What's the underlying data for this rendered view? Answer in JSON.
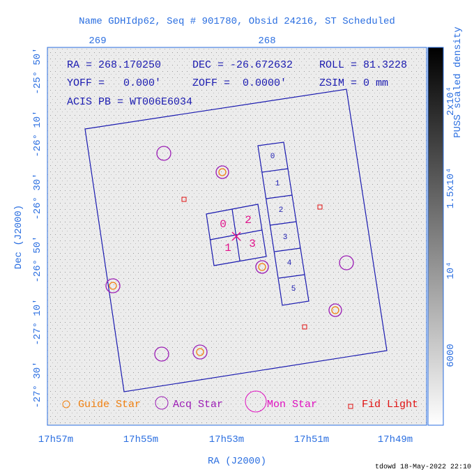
{
  "title": "Name GDHIdp62, Seq # 901780, Obsid 24216, ST Scheduled",
  "top_axis": {
    "ticks": [
      "269",
      "268"
    ]
  },
  "left_axis": {
    "label": "Dec (J2000)",
    "ticks": [
      "-25° 50'",
      "-26° 10'",
      "-26° 30'",
      "-26° 50'",
      "-27° 10'",
      "-27° 30'"
    ]
  },
  "bottom_axis": {
    "label": "RA (J2000)",
    "ticks": [
      "17h57m",
      "17h55m",
      "17h53m",
      "17h51m",
      "17h49m"
    ]
  },
  "info": [
    [
      "RA = 268.170250",
      "DEC = -26.672632",
      "ROLL = 81.3228"
    ],
    [
      "YOFF =   0.000'",
      "ZOFF =  0.0000'",
      "ZSIM = 0 mm"
    ],
    [
      "ACIS PB = WT006E6034"
    ]
  ],
  "acis_i_chips": [
    "0",
    "2",
    "1",
    "3"
  ],
  "acis_s_chips": [
    "0",
    "1",
    "2",
    "3",
    "4",
    "5"
  ],
  "legend": [
    "Guide Star",
    "Acq Star",
    "Mon Star",
    "Fid Light"
  ],
  "colorbar": {
    "label": "PUSS scaled density",
    "ticks": [
      "2x10⁴",
      "1.5x10⁴",
      "10⁴",
      "6000"
    ]
  },
  "footer": "tdowd 18-May-2022 22:10"
}
